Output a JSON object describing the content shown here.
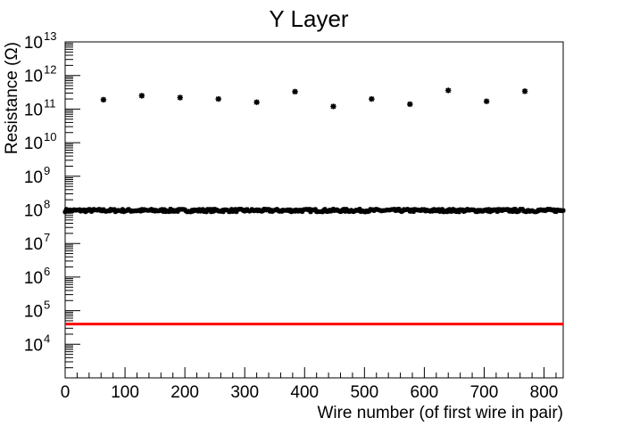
{
  "chart_data": {
    "type": "scatter",
    "title": "Y Layer",
    "xlabel": "Wire number (of first wire in pair)",
    "ylabel": "Resistance (Ω)",
    "xlim": [
      0,
      832
    ],
    "ylim": [
      1000.0,
      10000000000000.0
    ],
    "y_scale": "log",
    "grid": false,
    "legend": "none",
    "x_ticks": [
      0,
      100,
      200,
      300,
      400,
      500,
      600,
      700,
      800
    ],
    "x_tick_labels": [
      "0",
      "100",
      "200",
      "300",
      "400",
      "500",
      "600",
      "700",
      "800"
    ],
    "y_ticks_exponent": [
      4,
      5,
      6,
      7,
      8,
      9,
      10,
      11,
      12,
      13
    ],
    "y_tick_base": "10",
    "series": [
      {
        "values": [
          {
            "x": 64,
            "y": 190000000000.0
          },
          {
            "x": 128,
            "y": 250000000000.0
          },
          {
            "x": 192,
            "y": 220000000000.0
          },
          {
            "x": 256,
            "y": 200000000000.0
          },
          {
            "x": 320,
            "y": 160000000000.0
          },
          {
            "x": 384,
            "y": 330000000000.0
          },
          {
            "x": 448,
            "y": 120000000000.0
          },
          {
            "x": 512,
            "y": 200000000000.0
          },
          {
            "x": 576,
            "y": 140000000000.0
          },
          {
            "x": 640,
            "y": 360000000000.0
          },
          {
            "x": 704,
            "y": 170000000000.0
          },
          {
            "x": 768,
            "y": 340000000000.0
          }
        ],
        "color": "#000000"
      },
      {
        "x_range": [
          0,
          832
        ],
        "x_step": 2,
        "y_nominal": 100000000.0,
        "y_spread": [
          87000000.0,
          106000000.0
        ],
        "color": "#000000"
      }
    ],
    "reference_line": {
      "y": 40000.0,
      "color": "#ff0000"
    }
  }
}
